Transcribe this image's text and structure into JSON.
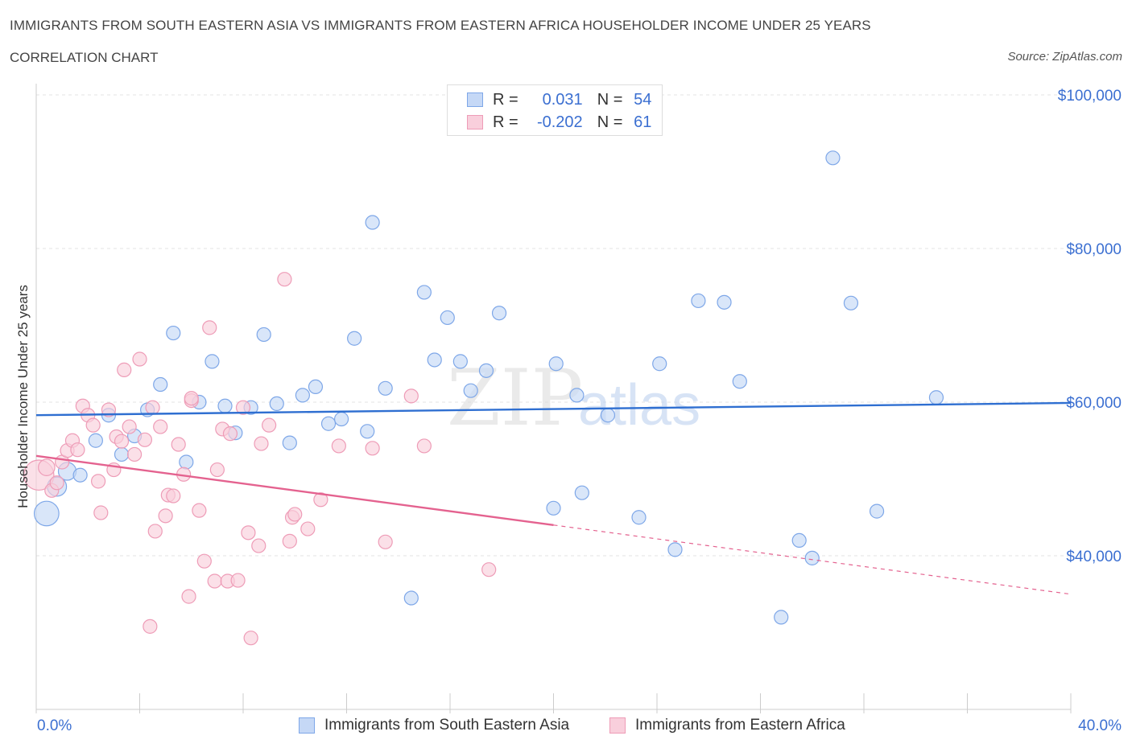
{
  "chart_data": {
    "type": "scatter",
    "title": "IMMIGRANTS FROM SOUTH EASTERN ASIA VS IMMIGRANTS FROM EASTERN AFRICA HOUSEHOLDER INCOME UNDER 25 YEARS",
    "subtitle": "CORRELATION CHART",
    "source": "Source: ZipAtlas.com",
    "watermark": {
      "zip": "ZIP",
      "atlas": "atlas"
    },
    "ylabel": "Householder Income Under 25 years",
    "xlim": [
      0,
      40
    ],
    "ylim": [
      20000,
      100000
    ],
    "x_tick_labels": {
      "min": "0.0%",
      "max": "40.0%"
    },
    "y_ticks": [
      {
        "value": 40000,
        "label": "$40,000"
      },
      {
        "value": 60000,
        "label": "$60,000"
      },
      {
        "value": 80000,
        "label": "$80,000"
      },
      {
        "value": 100000,
        "label": "$100,000"
      }
    ],
    "legend": [
      {
        "r_label": "R =",
        "r_value": "0.031",
        "n_label": "N =",
        "n_value": "54"
      },
      {
        "r_label": "R =",
        "r_value": "-0.202",
        "n_label": "N =",
        "n_value": "61"
      }
    ],
    "series": [
      {
        "name": "Immigrants from South Eastern Asia",
        "color": "#7ea7e8",
        "fill": "#c5d8f6",
        "trend_color": "#2f6fd1",
        "trend": {
          "x0": 0,
          "y0": 58300,
          "x1": 40,
          "y1": 59900,
          "solid_until": 40
        },
        "points": [
          [
            0.4,
            45500,
            18
          ],
          [
            0.8,
            49000,
            14
          ],
          [
            1.2,
            51000,
            13
          ],
          [
            1.7,
            50500,
            10
          ],
          [
            2.3,
            55000,
            10
          ],
          [
            2.8,
            58300,
            10
          ],
          [
            3.3,
            53200,
            10
          ],
          [
            3.8,
            55600,
            10
          ],
          [
            4.3,
            59000,
            10
          ],
          [
            4.8,
            62300,
            10
          ],
          [
            5.3,
            69000,
            10
          ],
          [
            5.8,
            52200,
            10
          ],
          [
            6.3,
            60000,
            10
          ],
          [
            6.8,
            65300,
            10
          ],
          [
            7.3,
            59500,
            10
          ],
          [
            7.7,
            56000,
            10
          ],
          [
            8.3,
            59300,
            10
          ],
          [
            8.8,
            68800,
            10
          ],
          [
            9.3,
            59800,
            10
          ],
          [
            9.8,
            54700,
            10
          ],
          [
            10.3,
            60900,
            10
          ],
          [
            10.8,
            62000,
            10
          ],
          [
            11.3,
            57200,
            10
          ],
          [
            11.8,
            57800,
            10
          ],
          [
            12.3,
            68300,
            10
          ],
          [
            12.8,
            56200,
            10
          ],
          [
            13.0,
            83400,
            10
          ],
          [
            13.5,
            61800,
            10
          ],
          [
            14.5,
            34500,
            10
          ],
          [
            15.0,
            74300,
            10
          ],
          [
            15.4,
            65500,
            10
          ],
          [
            15.9,
            71000,
            10
          ],
          [
            16.4,
            65300,
            10
          ],
          [
            16.8,
            61500,
            10
          ],
          [
            17.4,
            64100,
            10
          ],
          [
            17.9,
            71600,
            10
          ],
          [
            20.0,
            46200,
            10
          ],
          [
            20.1,
            65000,
            10
          ],
          [
            20.9,
            60900,
            10
          ],
          [
            21.1,
            48200,
            10
          ],
          [
            22.1,
            58300,
            10
          ],
          [
            23.3,
            45000,
            10
          ],
          [
            24.1,
            65000,
            10
          ],
          [
            24.7,
            40800,
            10
          ],
          [
            25.6,
            73200,
            10
          ],
          [
            26.6,
            73000,
            10
          ],
          [
            27.2,
            62700,
            10
          ],
          [
            28.8,
            32000,
            10
          ],
          [
            29.5,
            42000,
            10
          ],
          [
            30.0,
            39700,
            10
          ],
          [
            30.8,
            91800,
            10
          ],
          [
            31.5,
            72900,
            10
          ],
          [
            32.5,
            45800,
            10
          ],
          [
            34.8,
            60600,
            10
          ]
        ]
      },
      {
        "name": "Immigrants from Eastern Africa",
        "color": "#ee9cb7",
        "fill": "#f9cfdc",
        "trend_color": "#e4628f",
        "trend": {
          "x0": 0,
          "y0": 53000,
          "x1": 40,
          "y1": 35000,
          "solid_until": 20
        },
        "points": [
          [
            0.1,
            50500,
            22
          ],
          [
            0.4,
            51500,
            12
          ],
          [
            0.6,
            48500,
            10
          ],
          [
            0.8,
            49500,
            10
          ],
          [
            1.0,
            52200,
            10
          ],
          [
            1.2,
            53700,
            10
          ],
          [
            1.4,
            55000,
            10
          ],
          [
            1.6,
            53800,
            10
          ],
          [
            1.8,
            59500,
            10
          ],
          [
            2.0,
            58300,
            10
          ],
          [
            2.2,
            57000,
            10
          ],
          [
            2.4,
            49700,
            10
          ],
          [
            2.5,
            45600,
            10
          ],
          [
            2.8,
            59000,
            10
          ],
          [
            3.0,
            51200,
            10
          ],
          [
            3.1,
            55500,
            10
          ],
          [
            3.3,
            54900,
            10
          ],
          [
            3.4,
            64200,
            10
          ],
          [
            3.6,
            56800,
            10
          ],
          [
            3.8,
            53200,
            10
          ],
          [
            4.0,
            65600,
            10
          ],
          [
            4.2,
            55100,
            10
          ],
          [
            4.4,
            30800,
            10
          ],
          [
            4.5,
            59300,
            10
          ],
          [
            4.6,
            43200,
            10
          ],
          [
            4.8,
            56800,
            10
          ],
          [
            5.0,
            45200,
            10
          ],
          [
            5.1,
            47900,
            10
          ],
          [
            5.3,
            47800,
            10
          ],
          [
            5.5,
            54500,
            10
          ],
          [
            5.7,
            50600,
            10
          ],
          [
            5.9,
            34700,
            10
          ],
          [
            6.0,
            60200,
            10
          ],
          [
            6.3,
            45900,
            10
          ],
          [
            6.5,
            39300,
            10
          ],
          [
            6.7,
            69700,
            10
          ],
          [
            6.9,
            36700,
            10
          ],
          [
            7.0,
            51200,
            10
          ],
          [
            7.2,
            56500,
            10
          ],
          [
            7.4,
            36700,
            10
          ],
          [
            7.5,
            55900,
            10
          ],
          [
            7.8,
            36800,
            10
          ],
          [
            8.0,
            59300,
            10
          ],
          [
            8.2,
            43000,
            10
          ],
          [
            8.3,
            29300,
            10
          ],
          [
            8.6,
            41300,
            10
          ],
          [
            8.7,
            54600,
            10
          ],
          [
            9.6,
            76000,
            10
          ],
          [
            9.8,
            41900,
            10
          ],
          [
            9.9,
            45000,
            10
          ],
          [
            10.0,
            45400,
            10
          ],
          [
            10.5,
            43500,
            10
          ],
          [
            11.0,
            47300,
            10
          ],
          [
            11.7,
            54300,
            10
          ],
          [
            13.0,
            54000,
            10
          ],
          [
            13.5,
            41800,
            10
          ],
          [
            14.5,
            60800,
            10
          ],
          [
            15.0,
            54300,
            10
          ],
          [
            17.5,
            38200,
            10
          ],
          [
            6.0,
            60500,
            10
          ],
          [
            9.0,
            57000,
            10
          ]
        ]
      }
    ]
  }
}
